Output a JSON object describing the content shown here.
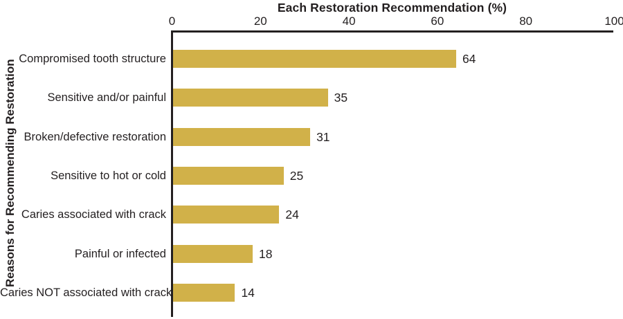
{
  "chart_data": {
    "type": "bar",
    "orientation": "horizontal",
    "title": "Each Restoration Recommendation (%)",
    "ylabel": "Reasons for Recommending Restoration",
    "xlabel": "",
    "xlim": [
      0,
      100
    ],
    "xticks": [
      "0",
      "20",
      "40",
      "60",
      "80",
      "100"
    ],
    "xtick_values": [
      0,
      20,
      40,
      60,
      80,
      100
    ],
    "categories": [
      "Compromised tooth structure",
      "Sensitive and/or painful",
      "Broken/defective restoration",
      "Sensitive to hot or cold",
      "Caries associated with crack",
      "Painful or infected",
      "Caries NOT associated with crack"
    ],
    "values": [
      64,
      35,
      31,
      25,
      24,
      18,
      14
    ],
    "data_labels": [
      "64",
      "35",
      "31",
      "25",
      "24",
      "18",
      "14"
    ],
    "grid": false,
    "legend": "none",
    "colors": {
      "bar": "#d1b149",
      "axis": "#231f20",
      "text": "#231f20",
      "background": "#ffffff"
    }
  }
}
